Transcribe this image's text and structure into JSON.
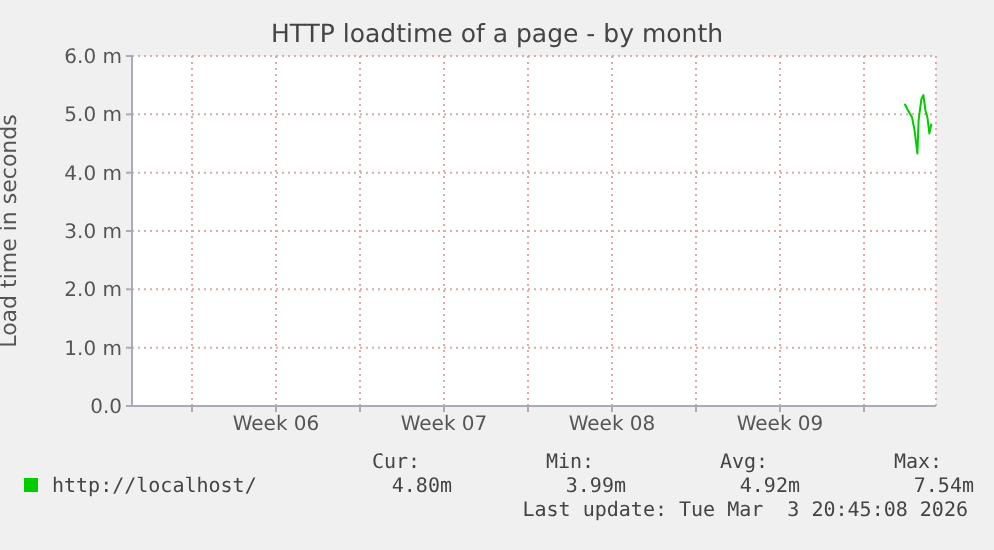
{
  "chart_data": {
    "type": "line",
    "title": "HTTP loadtime of a page - by month",
    "ylabel": "Load time in seconds",
    "x": [
      "2026-03-02T16:36",
      "2026-03-02T20:00",
      "2026-03-03T00:00",
      "2026-03-03T02:36",
      "2026-03-03T05:24",
      "2026-03-03T06:36",
      "2026-03-03T09:24",
      "2026-03-03T11:24",
      "2026-03-03T13:24",
      "2026-03-03T15:24",
      "2026-03-03T17:24",
      "2026-03-03T19:24"
    ],
    "series": [
      {
        "name": "http://localhost/",
        "color": "#00cc00",
        "values": [
          5.18,
          5.07,
          4.95,
          4.72,
          4.33,
          4.9,
          5.26,
          5.33,
          5.07,
          4.95,
          4.67,
          4.84
        ]
      }
    ],
    "xlim": [
      "2026-01-29T12:00",
      "2026-03-04T00:00"
    ],
    "xticks": [
      {
        "value": "2026-02-01",
        "label": null
      },
      {
        "value": "2026-02-04T12:00",
        "label": "Week 06"
      },
      {
        "value": "2026-02-08",
        "label": null
      },
      {
        "value": "2026-02-11T12:00",
        "label": "Week 07"
      },
      {
        "value": "2026-02-15",
        "label": null
      },
      {
        "value": "2026-02-18T12:00",
        "label": "Week 08"
      },
      {
        "value": "2026-02-22",
        "label": null
      },
      {
        "value": "2026-02-25T12:00",
        "label": "Week 09"
      },
      {
        "value": "2026-03-01",
        "label": null
      }
    ],
    "ylim": [
      0,
      6
    ],
    "yticks": [
      {
        "value": 0,
        "label": "0.0"
      },
      {
        "value": 1,
        "label": "1.0 m"
      },
      {
        "value": 2,
        "label": "2.0 m"
      },
      {
        "value": 3,
        "label": "3.0 m"
      },
      {
        "value": 4,
        "label": "4.0 m"
      },
      {
        "value": 5,
        "label": "5.0 m"
      },
      {
        "value": 6,
        "label": "6.0 m"
      }
    ],
    "grid": true,
    "legend": "bottom",
    "marker": "none",
    "line_style": "solid",
    "annotations": [
      "Cur:",
      "Min:",
      "Avg:",
      "Max:",
      "4.80m",
      "3.99m",
      "4.92m",
      "7.54m",
      "Last update: Tue Mar  3 20:45:08 2026"
    ]
  }
}
